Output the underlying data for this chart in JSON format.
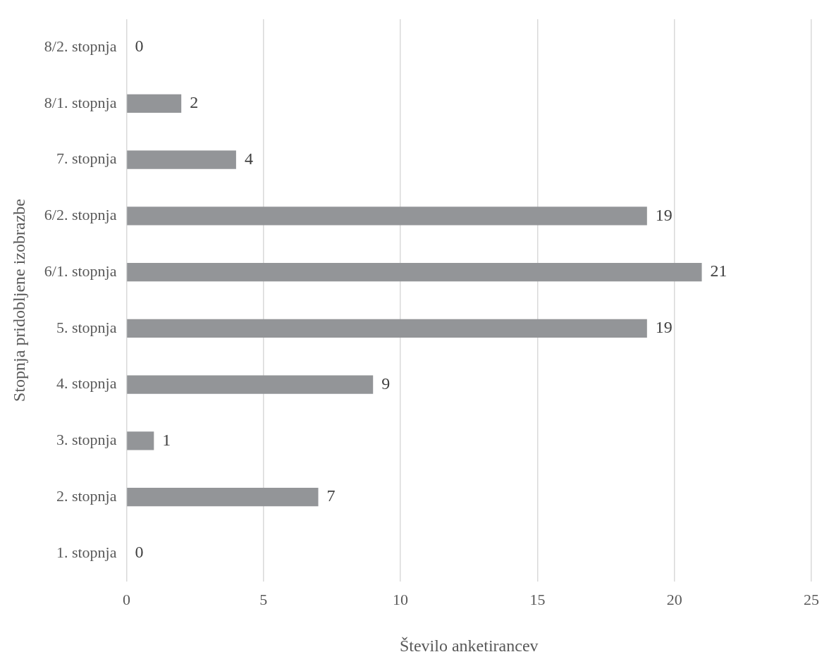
{
  "chart_data": {
    "type": "bar",
    "orientation": "horizontal",
    "xlabel": "Število anketirancev",
    "ylabel": "Stopnja pridobljene izobrazbe",
    "categories": [
      "8/2. stopnja",
      "8/1. stopnja",
      "7. stopnja",
      "6/2. stopnja",
      "6/1. stopnja",
      "5. stopnja",
      "4. stopnja",
      "3. stopnja",
      "2. stopnja",
      "1. stopnja"
    ],
    "values": [
      0,
      2,
      4,
      19,
      21,
      19,
      9,
      1,
      7,
      0
    ],
    "color": "#939598",
    "xlim": [
      0,
      25
    ],
    "xticks": [
      0,
      5,
      10,
      15,
      20,
      25
    ],
    "grid": "x",
    "data_labels": true,
    "legend": false
  }
}
